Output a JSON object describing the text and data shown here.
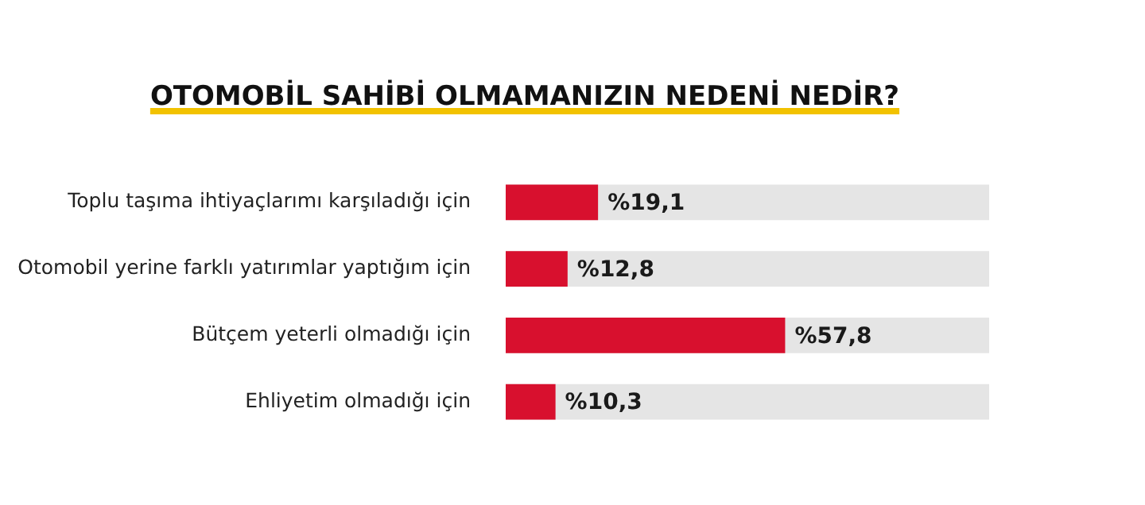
{
  "chart_data": {
    "type": "bar",
    "orientation": "horizontal",
    "title": "OTOMOBİL SAHİBİ OLMAMANIZIN NEDENİ NEDİR?",
    "categories": [
      "Toplu taşıma ihtiyaçlarımı karşıladığı için",
      "Otomobil yerine farklı yatırımlar yaptığım için",
      "Bütçem yeterli olmadığı için",
      "Ehliyetim olmadığı için"
    ],
    "values": [
      19.1,
      12.8,
      57.8,
      10.3
    ],
    "value_labels": [
      "%19,1",
      "%12,8",
      "%57,8",
      "%10,3"
    ],
    "color": "#d8102e",
    "xlim": [
      0,
      100
    ],
    "tick_labels": "y",
    "grid": false,
    "legend": false
  }
}
